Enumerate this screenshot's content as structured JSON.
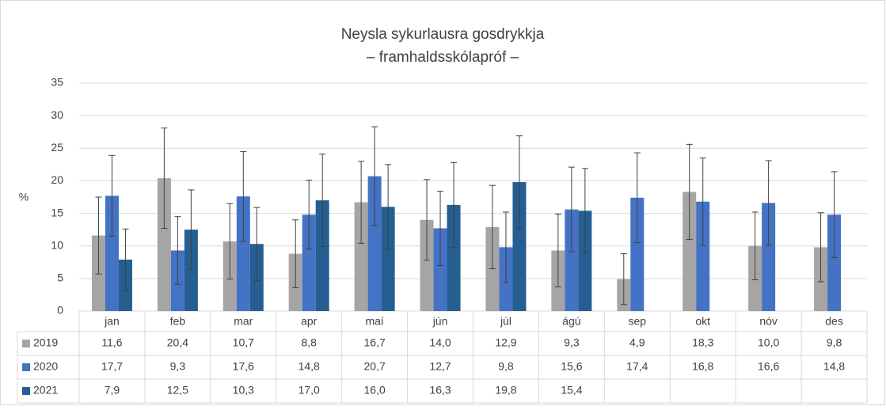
{
  "chart_data": {
    "type": "bar",
    "title": "Neysla sykurlausra gosdrykkja",
    "subtitle": "– framhaldsskólapróf –",
    "y_label": "%",
    "categories": [
      "jan",
      "feb",
      "mar",
      "apr",
      "maí",
      "jún",
      "júl",
      "ágú",
      "sep",
      "okt",
      "nóv",
      "des"
    ],
    "series": [
      {
        "name": "2019",
        "color": "#a5a5a5",
        "values": [
          11.6,
          20.4,
          10.7,
          8.8,
          16.7,
          14.0,
          12.9,
          9.3,
          4.9,
          18.3,
          10.0,
          9.8
        ],
        "value_labels": [
          "11,6",
          "20,4",
          "10,7",
          "8,8",
          "16,7",
          "14,0",
          "12,9",
          "9,3",
          "4,9",
          "18,3",
          "10,0",
          "9,8"
        ],
        "errors": [
          5.9,
          7.7,
          5.8,
          5.2,
          6.3,
          6.2,
          6.4,
          5.6,
          3.9,
          7.3,
          5.2,
          5.3
        ]
      },
      {
        "name": "2020",
        "color": "#4472c4",
        "values": [
          17.7,
          9.3,
          17.6,
          14.8,
          20.7,
          12.7,
          9.8,
          15.6,
          17.4,
          16.8,
          16.6,
          14.8
        ],
        "value_labels": [
          "17,7",
          "9,3",
          "17,6",
          "14,8",
          "20,7",
          "12,7",
          "9,8",
          "15,6",
          "17,4",
          "16,8",
          "16,6",
          "14,8"
        ],
        "errors": [
          6.2,
          5.2,
          6.9,
          5.3,
          7.6,
          5.7,
          5.4,
          6.5,
          6.9,
          6.7,
          6.5,
          6.6
        ]
      },
      {
        "name": "2021",
        "color": "#255e91",
        "values": [
          7.9,
          12.5,
          10.3,
          17.0,
          16.0,
          16.3,
          19.8,
          15.4,
          null,
          null,
          null,
          null
        ],
        "value_labels": [
          "7,9",
          "12,5",
          "10,3",
          "17,0",
          "16,0",
          "16,3",
          "19,8",
          "15,4",
          null,
          null,
          null,
          null
        ],
        "errors": [
          4.7,
          6.1,
          5.6,
          7.1,
          6.5,
          6.5,
          7.1,
          6.5,
          null,
          null,
          null,
          null
        ]
      }
    ],
    "ylim": [
      0,
      35
    ],
    "yticks": [
      0,
      5,
      10,
      15,
      20,
      25,
      30,
      35
    ],
    "grid": true,
    "error_color": "#404040"
  }
}
